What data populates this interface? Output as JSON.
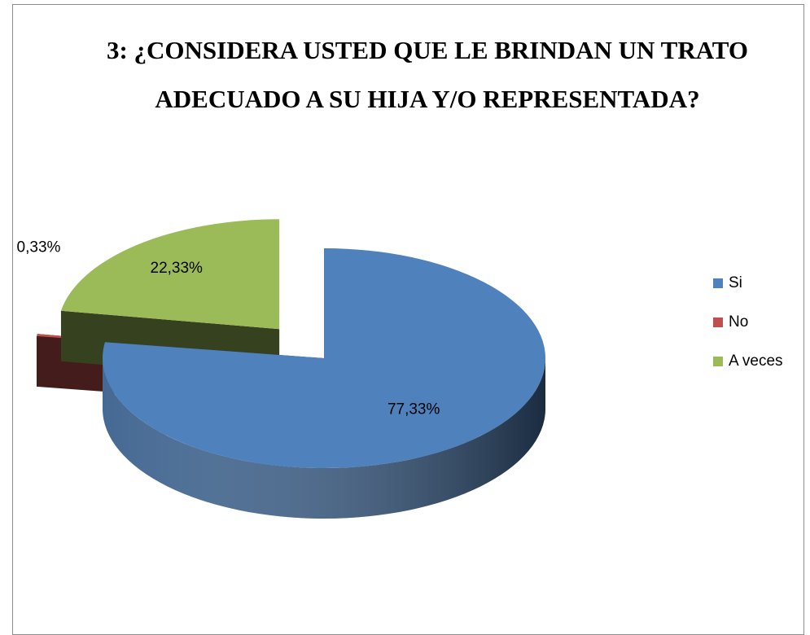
{
  "chart_data": {
    "type": "pie",
    "title": "3: ¿CONSIDERA USTED QUE LE BRINDAN UN TRATO ADECUADO A SU HIJA Y/O REPRESENTADA?",
    "categories": [
      "Si",
      "No",
      "A veces"
    ],
    "values": [
      77.33,
      0.33,
      22.33
    ],
    "value_labels": [
      "77,33%",
      "0,33%",
      "22,33%"
    ],
    "colors": [
      "#4f81bd",
      "#c0504d",
      "#9bbb59"
    ],
    "legend": "right",
    "three_d": true
  }
}
